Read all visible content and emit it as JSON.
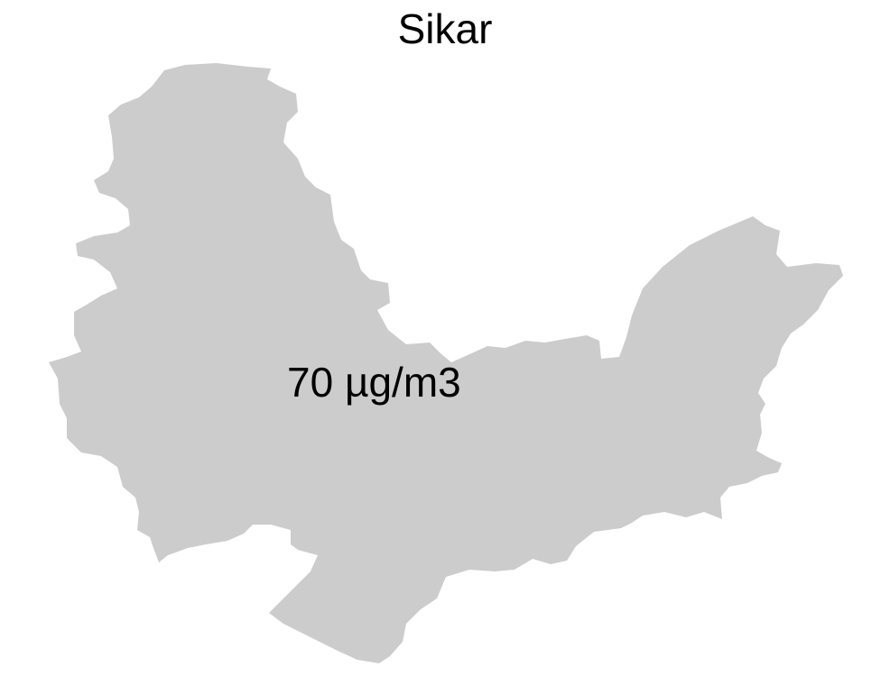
{
  "map": {
    "title": "Sikar",
    "region_label": "70 µg/m3",
    "region_fill": "#cccccc",
    "background": "#ffffff"
  }
}
